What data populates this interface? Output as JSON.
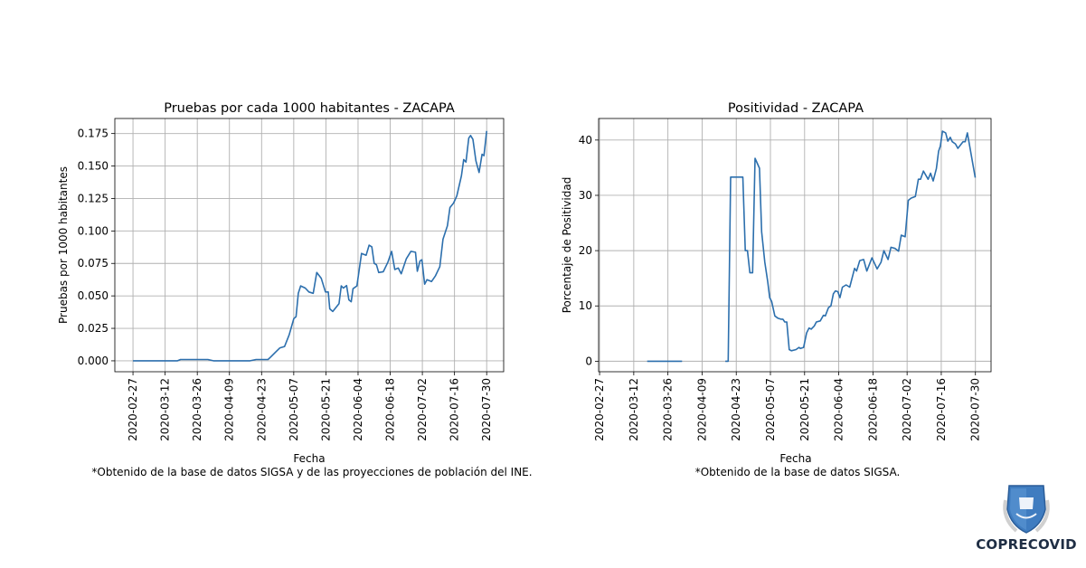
{
  "x_origin_date": "2020-02-27",
  "chart_data": [
    {
      "type": "line",
      "title": "Pruebas por cada 1000 habitantes - ZACAPA",
      "xlabel": "Fecha",
      "ylabel": "Pruebas por 1000 habitantes",
      "footnote": "*Obtenido de la base de datos SIGSA y de las proyecciones de población del INE.",
      "x_unit": "days since 2020-02-27",
      "xlim": [
        -7.9,
        161.4
      ],
      "ylim": [
        -0.0084,
        0.1866
      ],
      "grid": true,
      "color": "#2c6fad",
      "xtick_labels": [
        "2020-02-27",
        "2020-03-12",
        "2020-03-26",
        "2020-04-09",
        "2020-04-23",
        "2020-05-07",
        "2020-05-21",
        "2020-06-04",
        "2020-06-18",
        "2020-07-02",
        "2020-07-16",
        "2020-07-30"
      ],
      "xtick_values": [
        0,
        14,
        28,
        42,
        56,
        70,
        84,
        98,
        112,
        126,
        140,
        154
      ],
      "ytick_labels": [
        "0.000",
        "0.025",
        "0.050",
        "0.075",
        "0.100",
        "0.125",
        "0.150",
        "0.175"
      ],
      "ytick_values": [
        0,
        0.025,
        0.05,
        0.075,
        0.1,
        0.125,
        0.15,
        0.175
      ],
      "x": [
        0,
        19.4,
        20.7,
        32.6,
        35,
        51,
        53.6,
        58.8,
        60,
        62,
        64,
        66,
        68,
        70,
        71,
        72,
        73,
        75,
        76.6,
        78.5,
        80,
        82,
        83.8,
        85,
        85.7,
        87,
        89.7,
        90.7,
        91.6,
        93,
        94,
        95,
        95.8,
        97.5,
        99.5,
        101.5,
        102.8,
        104,
        105,
        106,
        107,
        109,
        111,
        112.6,
        114,
        115.5,
        116.8,
        119,
        121,
        123,
        123.8,
        125,
        125.8,
        127,
        128,
        130,
        131.7,
        133.6,
        135,
        136.9,
        138,
        139.6,
        141,
        143,
        144,
        145,
        146.2,
        147,
        148,
        149.3,
        150.7,
        152,
        152.8,
        154
      ],
      "y": [
        0,
        0,
        0.001,
        0.001,
        0,
        0,
        0.001,
        0.001,
        0.003,
        0.0065,
        0.01,
        0.011,
        0.02,
        0.0325,
        0.034,
        0.052,
        0.0577,
        0.056,
        0.053,
        0.052,
        0.068,
        0.0635,
        0.053,
        0.053,
        0.04,
        0.038,
        0.044,
        0.0577,
        0.056,
        0.058,
        0.047,
        0.0455,
        0.0555,
        0.0577,
        0.0827,
        0.0813,
        0.089,
        0.0878,
        0.075,
        0.074,
        0.068,
        0.0686,
        0.076,
        0.0843,
        0.0703,
        0.0715,
        0.067,
        0.0785,
        0.0843,
        0.0836,
        0.069,
        0.077,
        0.0778,
        0.059,
        0.0625,
        0.061,
        0.0655,
        0.0725,
        0.0936,
        0.104,
        0.118,
        0.1215,
        0.127,
        0.1425,
        0.155,
        0.153,
        0.1715,
        0.1735,
        0.1705,
        0.154,
        0.145,
        0.159,
        0.158,
        0.177
      ]
    },
    {
      "type": "line",
      "title": "Positividad - ZACAPA",
      "xlabel": "Fecha",
      "ylabel": "Porcentaje de Positividad",
      "footnote": "*Obtenido de la base de datos SIGSA.",
      "x_unit": "days since 2020-02-27",
      "xlim": [
        -0.4,
        160.4
      ],
      "ylim": [
        -1.9,
        43.9
      ],
      "grid": true,
      "color": "#2c6fad",
      "xtick_labels": [
        "2020-02-27",
        "2020-03-12",
        "2020-03-26",
        "2020-04-09",
        "2020-04-23",
        "2020-05-07",
        "2020-05-21",
        "2020-06-04",
        "2020-06-18",
        "2020-07-02",
        "2020-07-16",
        "2020-07-30"
      ],
      "xtick_values": [
        0,
        14,
        28,
        42,
        56,
        70,
        84,
        98,
        112,
        126,
        140,
        154
      ],
      "ytick_labels": [
        "0",
        "10",
        "20",
        "30",
        "40"
      ],
      "ytick_values": [
        0,
        10,
        20,
        30,
        40
      ],
      "x": [
        19.5,
        33.8,
        null,
        51.5,
        52.7,
        53.7,
        58.7,
        59.7,
        60.6,
        61.6,
        62.7,
        63.7,
        65.5,
        66.4,
        67.7,
        68.9,
        69.7,
        70.5,
        71.8,
        73,
        74.3,
        75.1,
        75.9,
        76.7,
        77.7,
        78.6,
        80.5,
        81.7,
        82.3,
        83.6,
        84.8,
        85.8,
        86.7,
        88,
        88.8,
        90.4,
        91.7,
        92.5,
        93.8,
        94.8,
        95.8,
        96.6,
        97.6,
        98.5,
        99.5,
        101,
        102.5,
        104.5,
        105.3,
        106.6,
        108.2,
        109.5,
        111.6,
        113.7,
        115.3,
        116.5,
        118.2,
        119.4,
        121.1,
        122.5,
        123.6,
        125.2,
        126.5,
        127.7,
        129.4,
        130.6,
        131.5,
        132.7,
        134.6,
        135.6,
        136.7,
        138,
        138.9,
        139.6,
        140.5,
        141.8,
        142.7,
        143.7,
        144.5,
        145.8,
        146.8,
        148.9,
        149.8,
        150.7,
        153.9
      ],
      "y": [
        0,
        0,
        null,
        0,
        0,
        33.3,
        33.3,
        20,
        20,
        16,
        16,
        36.7,
        34.9,
        23.4,
        17.9,
        14.4,
        11.5,
        10.8,
        8.2,
        7.8,
        7.6,
        7.6,
        7.1,
        7.1,
        2.1,
        1.9,
        2.1,
        2.5,
        2.3,
        2.5,
        5.1,
        6,
        5.8,
        6.4,
        7.1,
        7.3,
        8.3,
        8.2,
        9.7,
        10,
        12.2,
        12.7,
        12.6,
        11.5,
        13.4,
        13.8,
        13.4,
        16.8,
        16.3,
        18.2,
        18.4,
        16.3,
        18.7,
        16.7,
        17.9,
        20,
        18.4,
        20.6,
        20.4,
        19.9,
        22.8,
        22.5,
        29.1,
        29.5,
        29.8,
        32.9,
        32.9,
        34.4,
        32.9,
        34,
        32.6,
        34.8,
        38,
        38.9,
        41.6,
        41.3,
        39.8,
        40.5,
        39.7,
        39.3,
        38.5,
        39.7,
        39.7,
        41.3,
        33.2
      ]
    }
  ],
  "logo": {
    "text": "COPRECOVID"
  }
}
